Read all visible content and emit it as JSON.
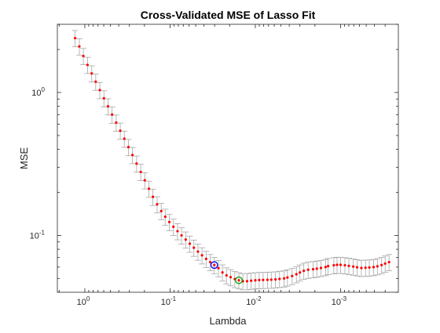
{
  "chart_data": {
    "type": "line",
    "title": "Cross-Validated MSE of Lasso Fit",
    "xlabel": "Lambda",
    "ylabel": "MSE",
    "x_scale": "log",
    "x_reversed": true,
    "y_scale": "log",
    "xlim": [
      2.1,
      0.00021
    ],
    "ylim": [
      0.04,
      3.0
    ],
    "x_ticks": [
      {
        "value": 1,
        "base": "10",
        "exp": "0"
      },
      {
        "value": 0.1,
        "base": "10",
        "exp": "-1"
      },
      {
        "value": 0.01,
        "base": "10",
        "exp": "-2"
      },
      {
        "value": 0.001,
        "base": "10",
        "exp": "-3"
      }
    ],
    "y_ticks": [
      {
        "value": 1,
        "base": "10",
        "exp": "0"
      },
      {
        "value": 0.1,
        "base": "10",
        "exp": "-1"
      }
    ],
    "grid": false,
    "legend": "none",
    "series_color": "#ff0000",
    "errorbar_color": "#a6a6a6",
    "min_mse_color": "#00a000",
    "one_se_color": "#0000ff",
    "lambda_min_mse": 0.0149,
    "lambda_1se": 0.0311,
    "series": [
      {
        "lambda": [
          1.3,
          1.16,
          1.04,
          0.93,
          0.83,
          0.745,
          0.667,
          0.597,
          0.535,
          0.479,
          0.429,
          0.384,
          0.344,
          0.308,
          0.276,
          0.247,
          0.221,
          0.198,
          0.177,
          0.159,
          0.142,
          0.127,
          0.114,
          0.102,
          0.0914,
          0.0818,
          0.0733,
          0.0656,
          0.0588,
          0.0526,
          0.0471,
          0.0422,
          0.0378,
          0.0338,
          0.0303,
          0.0271,
          0.0243,
          0.0218,
          0.0195,
          0.0174,
          0.0156,
          0.014,
          0.0125,
          0.0112,
          0.01,
          0.009,
          0.0081,
          0.0072,
          0.0065,
          0.0058,
          0.0052,
          0.0046,
          0.0042,
          0.0037,
          0.0033,
          0.003,
          0.0027,
          0.0024,
          0.0021,
          0.0019,
          0.0017,
          0.0015,
          0.0014,
          0.0012,
          0.0011,
          0.001,
          0.00089,
          0.0008,
          0.00071,
          0.00064,
          0.00057,
          0.00051,
          0.00046,
          0.00041,
          0.00037,
          0.00033,
          0.0003,
          0.00027
        ],
        "mse": [
          2.4,
          2.1,
          1.8,
          1.56,
          1.36,
          1.19,
          1.04,
          0.91,
          0.8,
          0.7,
          0.615,
          0.54,
          0.475,
          0.415,
          0.365,
          0.318,
          0.278,
          0.243,
          0.212,
          0.186,
          0.165,
          0.148,
          0.135,
          0.124,
          0.115,
          0.107,
          0.1,
          0.0935,
          0.0875,
          0.082,
          0.077,
          0.0725,
          0.0685,
          0.065,
          0.062,
          0.059,
          0.055,
          0.0525,
          0.051,
          0.0495,
          0.0485,
          0.0478,
          0.0478,
          0.0482,
          0.0485,
          0.0487,
          0.0488,
          0.0489,
          0.049,
          0.0492,
          0.0496,
          0.05,
          0.0508,
          0.052,
          0.0535,
          0.055,
          0.0565,
          0.0575,
          0.058,
          0.0585,
          0.0592,
          0.06,
          0.061,
          0.0618,
          0.0622,
          0.0622,
          0.0618,
          0.0612,
          0.0605,
          0.0598,
          0.0592,
          0.0594,
          0.0596,
          0.06,
          0.0608,
          0.062,
          0.0635,
          0.065
        ],
        "se_frac": 0.13
      }
    ]
  }
}
